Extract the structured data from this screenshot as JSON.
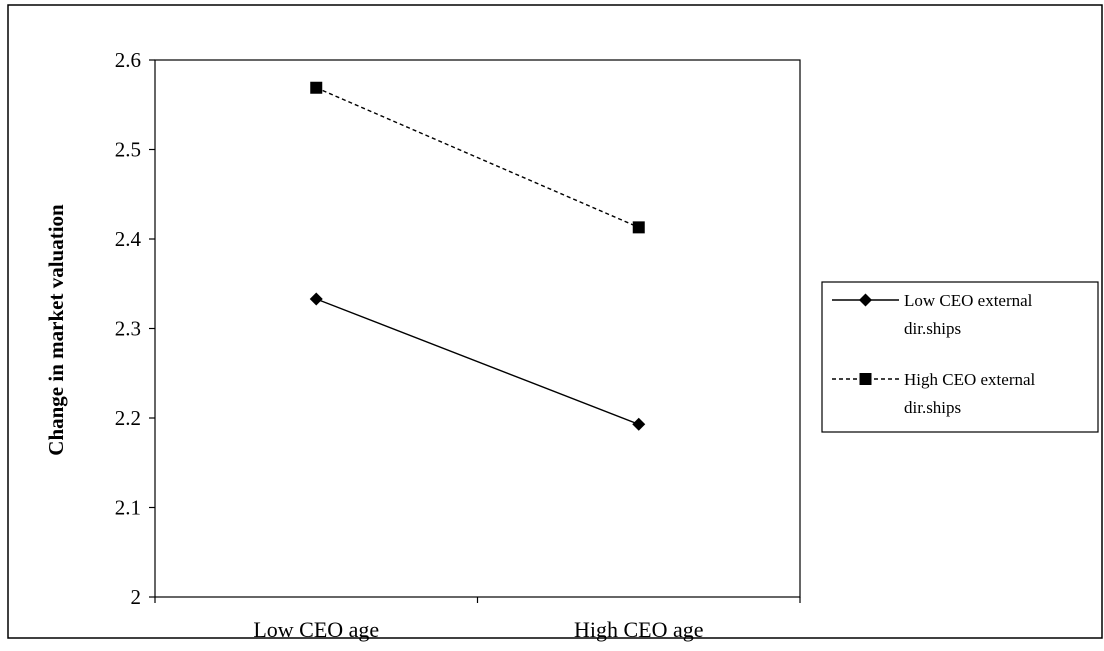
{
  "chart_data": {
    "type": "line",
    "title": "",
    "xlabel": "",
    "ylabel": "Change in market valuation",
    "categories": [
      "Low CEO age",
      "High CEO age"
    ],
    "yticks": [
      "2",
      "2.1",
      "2.2",
      "2.3",
      "2.4",
      "2.5",
      "2.6"
    ],
    "ylim": [
      2,
      2.6
    ],
    "grid": false,
    "legend_position": "right",
    "series": [
      {
        "name_lines": [
          "Low CEO external",
          "dir.ships"
        ],
        "values": [
          2.333,
          2.193
        ],
        "marker": "diamond",
        "line_style": "solid",
        "color": "#000000"
      },
      {
        "name_lines": [
          "High CEO external",
          "dir.ships"
        ],
        "values": [
          2.569,
          2.413
        ],
        "marker": "square",
        "line_style": "dashed",
        "color": "#000000"
      }
    ]
  }
}
